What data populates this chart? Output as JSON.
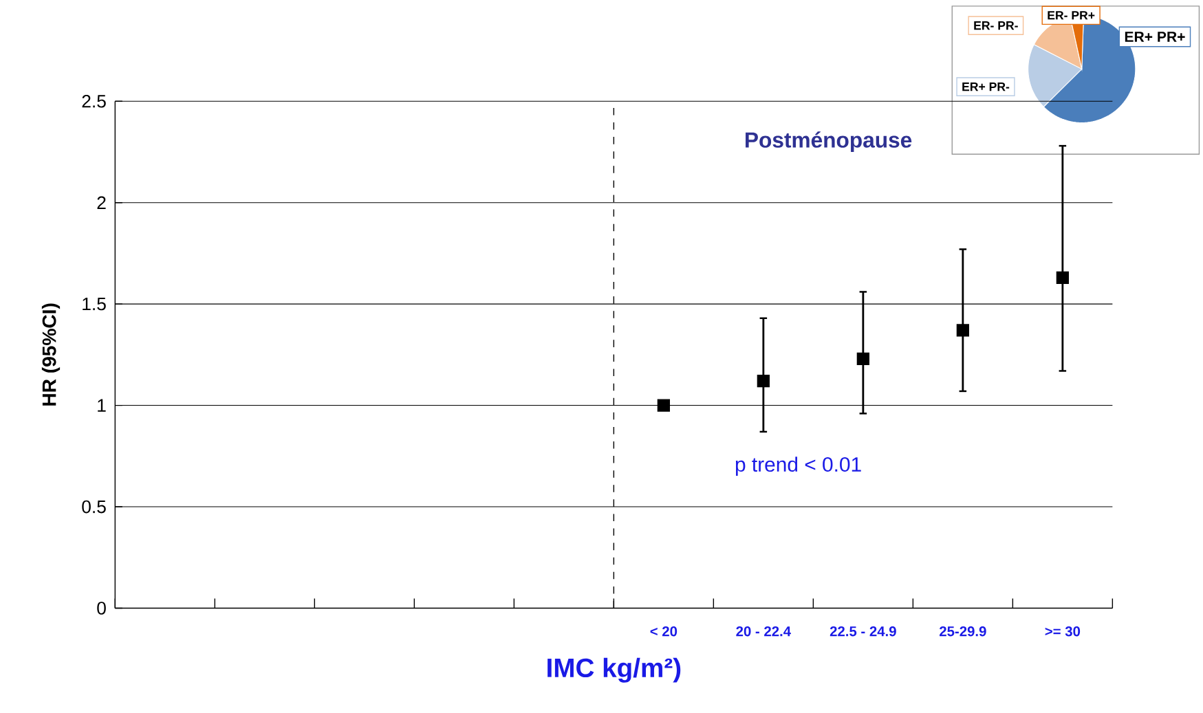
{
  "chart_data": [
    {
      "type": "scatter",
      "xlabel": "IMC  kg/m²)",
      "ylabel": "HR (95%CI)",
      "categories": [
        null,
        null,
        null,
        null,
        null,
        "< 20",
        "20 - 22.4",
        "22.5 - 24.9",
        "25-29.9",
        ">= 30"
      ],
      "series": [
        {
          "color": "#000000",
          "values": [
            null,
            null,
            null,
            null,
            null,
            1.0,
            1.12,
            1.23,
            1.37,
            1.63
          ],
          "errors": [
            null,
            null,
            null,
            null,
            null,
            null,
            [
              0.87,
              1.43
            ],
            [
              0.96,
              1.56
            ],
            [
              1.07,
              1.77
            ],
            [
              1.17,
              2.28
            ]
          ]
        }
      ],
      "ylim": [
        0,
        2.5
      ],
      "yticks": [
        0,
        0.5,
        1,
        1.5,
        2,
        2.5
      ],
      "grid": "y",
      "marker": "square",
      "annotations": [
        "Postménopause",
        "p trend < 0.01"
      ]
    },
    {
      "type": "pie",
      "categories": [
        "ER+ PR+",
        "ER+ PR-",
        "ER- PR-",
        "ER- PR+"
      ],
      "values": [
        62,
        20,
        14,
        4
      ],
      "colors": [
        "#4a7ebb",
        "#b9cde5",
        "#f5c097",
        "#e46c0a"
      ]
    }
  ]
}
